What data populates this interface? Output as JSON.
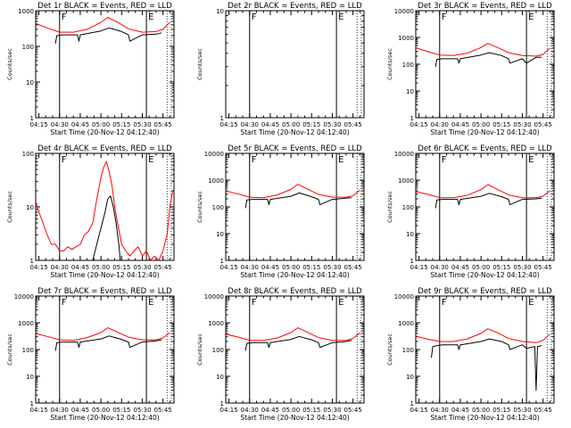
{
  "figure": {
    "xlabel": "Start Time (20-Nov-12 04:12:40)",
    "ylabel": "Counts/sec",
    "x_ticks": [
      "04:15",
      "04:30",
      "04:45",
      "05:00",
      "05:15",
      "05:30",
      "05:45"
    ],
    "colors": {
      "events": "#000000",
      "lld": "#ff0000",
      "axes": "#000000",
      "background": "#ffffff"
    }
  },
  "chart_data": [
    {
      "type": "line",
      "title": "Det 1r BLACK = Events, RED = LLD",
      "ylabel": "Counts/sec",
      "xlabel": "Start Time (20-Nov-12 04:12:40)",
      "xlim": [
        "04:12:40",
        "05:53:00"
      ],
      "ylim": [
        1,
        1000
      ],
      "y_scale": "log",
      "y_tick_labels": [
        "1",
        "10",
        "100",
        "1000"
      ],
      "markers": {
        "solid": [
          "04:30",
          "05:33"
        ],
        "dotted": [
          "05:48",
          "05:51"
        ],
        "labels": [
          {
            "text": "F",
            "at": "04:30"
          },
          {
            "text": "E",
            "at": "05:33"
          }
        ]
      },
      "series": [
        {
          "name": "LLD",
          "color": "#ff0000",
          "x": [
            "04:12",
            "04:22",
            "04:30",
            "04:40",
            "04:50",
            "05:00",
            "05:05",
            "05:12",
            "05:20",
            "05:30",
            "05:40",
            "05:45",
            "05:50"
          ],
          "y": [
            450,
            320,
            250,
            250,
            300,
            470,
            650,
            480,
            310,
            250,
            260,
            300,
            480
          ]
        },
        {
          "name": "Events",
          "color": "#000000",
          "x": [
            "04:27",
            "04:28",
            "04:32",
            "04:43",
            "04:44",
            "04:45",
            "05:00",
            "05:06",
            "05:15",
            "05:20",
            "05:21",
            "05:30",
            "05:40",
            "05:44"
          ],
          "y": [
            120,
            200,
            210,
            210,
            140,
            210,
            270,
            330,
            260,
            210,
            140,
            210,
            220,
            240
          ]
        }
      ]
    },
    {
      "type": "line",
      "title": "Det 2r BLACK = Events, RED = LLD",
      "ylabel": "Counts/sec",
      "xlabel": "Start Time (20-Nov-12 04:12:40)",
      "xlim": [
        "04:12:40",
        "05:53:00"
      ],
      "ylim": [
        1,
        10
      ],
      "y_scale": "log",
      "y_tick_labels": [
        "1",
        "10"
      ],
      "markers": {
        "solid": [
          "04:30",
          "05:33"
        ],
        "dotted": [
          "05:48",
          "05:51"
        ],
        "labels": [
          {
            "text": "F",
            "at": "04:30"
          },
          {
            "text": "E",
            "at": "05:33"
          }
        ]
      },
      "series": []
    },
    {
      "type": "line",
      "title": "Det 3r BLACK = Events, RED = LLD",
      "ylabel": "Counts/sec",
      "xlabel": "Start Time (20-Nov-12 04:12:40)",
      "xlim": [
        "04:12:40",
        "05:53:00"
      ],
      "ylim": [
        1,
        10000
      ],
      "y_scale": "log",
      "y_tick_labels": [
        "1",
        "10",
        "100",
        "1000",
        "10000"
      ],
      "markers": {
        "solid": [
          "04:30",
          "05:33"
        ],
        "dotted": [
          "05:48",
          "05:51"
        ],
        "labels": [
          {
            "text": "F",
            "at": "04:30"
          },
          {
            "text": "E",
            "at": "05:33"
          }
        ]
      },
      "series": [
        {
          "name": "LLD",
          "color": "#ff0000",
          "x": [
            "04:12",
            "04:22",
            "04:30",
            "04:40",
            "04:50",
            "05:00",
            "05:05",
            "05:12",
            "05:20",
            "05:30",
            "05:40",
            "05:45",
            "05:50"
          ],
          "y": [
            420,
            290,
            220,
            210,
            260,
            420,
            600,
            420,
            270,
            210,
            200,
            230,
            400
          ]
        },
        {
          "name": "Events",
          "color": "#000000",
          "x": [
            "04:27",
            "04:28",
            "04:32",
            "04:43",
            "04:44",
            "04:45",
            "05:00",
            "05:06",
            "05:15",
            "05:20",
            "05:21",
            "05:30",
            "05:33",
            "05:40",
            "05:44"
          ],
          "y": [
            80,
            150,
            160,
            160,
            110,
            160,
            220,
            270,
            210,
            160,
            110,
            160,
            110,
            180,
            180
          ]
        }
      ]
    },
    {
      "type": "line",
      "title": "Det 4r BLACK = Events, RED = LLD",
      "ylabel": "Counts/sec",
      "xlabel": "Start Time (20-Nov-12 04:12:40)",
      "xlim": [
        "04:12:40",
        "05:53:00"
      ],
      "ylim": [
        1,
        100
      ],
      "y_scale": "log",
      "y_tick_labels": [
        "1",
        "10",
        "100"
      ],
      "markers": {
        "solid": [
          "04:30",
          "05:33"
        ],
        "dotted": [
          "05:48",
          "05:51"
        ],
        "labels": [
          {
            "text": "F",
            "at": "04:30"
          },
          {
            "text": "E",
            "at": "05:33"
          }
        ]
      },
      "series": [
        {
          "name": "LLD",
          "color": "#ff0000",
          "x": [
            "04:13",
            "04:15",
            "04:18",
            "04:21",
            "04:24",
            "04:27",
            "04:30",
            "04:33",
            "04:36",
            "04:39",
            "04:42",
            "04:45",
            "04:48",
            "04:51",
            "04:54",
            "04:57",
            "05:00",
            "05:02",
            "05:04",
            "05:06",
            "05:08",
            "05:10",
            "05:12",
            "05:15",
            "05:18",
            "05:21",
            "05:24",
            "05:27",
            "05:30",
            "05:33",
            "05:36",
            "05:39",
            "05:42",
            "05:45",
            "05:48",
            "05:50",
            "05:52"
          ],
          "y": [
            12,
            8,
            5,
            3,
            2,
            2,
            1.5,
            1.5,
            1.8,
            1.6,
            1.8,
            2,
            3,
            3.5,
            5,
            14,
            35,
            55,
            70,
            45,
            25,
            10,
            5,
            2,
            1.5,
            1.2,
            1.5,
            1.8,
            1.2,
            1.5,
            1,
            1.2,
            1,
            1.5,
            3,
            10,
            20
          ]
        },
        {
          "name": "Events",
          "color": "#000000",
          "x": [
            "04:54",
            "04:57",
            "05:00",
            "05:03",
            "05:05",
            "05:07",
            "05:09",
            "05:11",
            "05:13",
            "05:14"
          ],
          "y": [
            1,
            2,
            4,
            8,
            14,
            16,
            10,
            5,
            2,
            1
          ]
        }
      ]
    },
    {
      "type": "line",
      "title": "Det 5r BLACK = Events, RED = LLD",
      "ylabel": "Counts/sec",
      "xlabel": "Start Time (20-Nov-12 04:12:40)",
      "xlim": [
        "04:12:40",
        "05:53:00"
      ],
      "ylim": [
        1,
        10000
      ],
      "y_scale": "log",
      "y_tick_labels": [
        "1",
        "10",
        "100",
        "1000",
        "10000"
      ],
      "markers": {
        "solid": [
          "04:30",
          "05:33"
        ],
        "dotted": [
          "05:48",
          "05:51"
        ],
        "labels": [
          {
            "text": "F",
            "at": "04:30"
          },
          {
            "text": "E",
            "at": "05:33"
          }
        ]
      },
      "series": [
        {
          "name": "LLD",
          "color": "#ff0000",
          "x": [
            "04:12",
            "04:22",
            "04:30",
            "04:40",
            "04:50",
            "05:00",
            "05:05",
            "05:12",
            "05:20",
            "05:30",
            "05:40",
            "05:45",
            "05:50"
          ],
          "y": [
            400,
            300,
            230,
            220,
            280,
            450,
            700,
            460,
            290,
            230,
            230,
            260,
            420
          ]
        },
        {
          "name": "Events",
          "color": "#000000",
          "x": [
            "04:27",
            "04:28",
            "04:32",
            "04:43",
            "04:44",
            "04:45",
            "05:00",
            "05:06",
            "05:15",
            "05:20",
            "05:21",
            "05:30",
            "05:40",
            "05:44"
          ],
          "y": [
            90,
            180,
            190,
            190,
            120,
            190,
            250,
            330,
            240,
            190,
            120,
            190,
            210,
            220
          ]
        }
      ]
    },
    {
      "type": "line",
      "title": "Det 6r BLACK = Events, RED = LLD",
      "ylabel": "Counts/sec",
      "xlabel": "Start Time (20-Nov-12 04:12:40)",
      "xlim": [
        "04:12:40",
        "05:53:00"
      ],
      "ylim": [
        1,
        10000
      ],
      "y_scale": "log",
      "y_tick_labels": [
        "1",
        "10",
        "100",
        "1000",
        "10000"
      ],
      "markers": {
        "solid": [
          "04:30",
          "05:33"
        ],
        "dotted": [
          "05:48",
          "05:51"
        ],
        "labels": [
          {
            "text": "F",
            "at": "04:30"
          },
          {
            "text": "E",
            "at": "05:33"
          }
        ]
      },
      "series": [
        {
          "name": "LLD",
          "color": "#ff0000",
          "x": [
            "04:12",
            "04:22",
            "04:30",
            "04:40",
            "04:50",
            "05:00",
            "05:05",
            "05:12",
            "05:20",
            "05:30",
            "05:40",
            "05:45",
            "05:50"
          ],
          "y": [
            380,
            290,
            220,
            220,
            270,
            440,
            680,
            450,
            280,
            220,
            220,
            250,
            400
          ]
        },
        {
          "name": "Events",
          "color": "#000000",
          "x": [
            "04:27",
            "04:28",
            "04:32",
            "04:43",
            "04:44",
            "04:45",
            "05:00",
            "05:06",
            "05:15",
            "05:20",
            "05:21",
            "05:30",
            "05:40",
            "05:44"
          ],
          "y": [
            90,
            180,
            190,
            190,
            120,
            190,
            250,
            320,
            240,
            190,
            120,
            190,
            200,
            210
          ]
        }
      ]
    },
    {
      "type": "line",
      "title": "Det 7r BLACK = Events, RED = LLD",
      "ylabel": "Counts/sec",
      "xlabel": "Start Time (20-Nov-12 04:12:40)",
      "xlim": [
        "04:12:40",
        "05:53:00"
      ],
      "ylim": [
        1,
        10000
      ],
      "y_scale": "log",
      "y_tick_labels": [
        "1",
        "10",
        "100",
        "1000",
        "10000"
      ],
      "markers": {
        "solid": [
          "04:30",
          "05:33"
        ],
        "dotted": [
          "05:48",
          "05:51"
        ],
        "labels": [
          {
            "text": "F",
            "at": "04:30"
          },
          {
            "text": "E",
            "at": "05:33"
          }
        ]
      },
      "series": [
        {
          "name": "LLD",
          "color": "#ff0000",
          "x": [
            "04:12",
            "04:22",
            "04:30",
            "04:40",
            "04:50",
            "05:00",
            "05:05",
            "05:12",
            "05:20",
            "05:30",
            "05:40",
            "05:45",
            "05:50"
          ],
          "y": [
            400,
            300,
            230,
            220,
            280,
            430,
            650,
            450,
            290,
            230,
            230,
            270,
            430
          ]
        },
        {
          "name": "Events",
          "color": "#000000",
          "x": [
            "04:27",
            "04:28",
            "04:32",
            "04:43",
            "04:44",
            "04:45",
            "05:00",
            "05:06",
            "05:15",
            "05:20",
            "05:21",
            "05:30",
            "05:40",
            "05:44"
          ],
          "y": [
            90,
            180,
            190,
            190,
            120,
            190,
            250,
            320,
            240,
            190,
            120,
            190,
            210,
            230
          ]
        }
      ]
    },
    {
      "type": "line",
      "title": "Det 8r BLACK = Events, RED = LLD",
      "ylabel": "Counts/sec",
      "xlabel": "Start Time (20-Nov-12 04:12:40)",
      "xlim": [
        "04:12:40",
        "05:53:00"
      ],
      "ylim": [
        1,
        10000
      ],
      "y_scale": "log",
      "y_tick_labels": [
        "1",
        "10",
        "100",
        "1000",
        "10000"
      ],
      "markers": {
        "solid": [
          "04:30",
          "05:33"
        ],
        "dotted": [
          "05:48",
          "05:51"
        ],
        "labels": [
          {
            "text": "F",
            "at": "04:30"
          },
          {
            "text": "E",
            "at": "05:33"
          }
        ]
      },
      "series": [
        {
          "name": "LLD",
          "color": "#ff0000",
          "x": [
            "04:12",
            "04:22",
            "04:30",
            "04:40",
            "04:50",
            "05:00",
            "05:05",
            "05:12",
            "05:20",
            "05:30",
            "05:40",
            "05:45",
            "05:50"
          ],
          "y": [
            380,
            290,
            220,
            220,
            270,
            430,
            650,
            440,
            280,
            220,
            220,
            260,
            420
          ]
        },
        {
          "name": "Events",
          "color": "#000000",
          "x": [
            "04:27",
            "04:28",
            "04:32",
            "04:43",
            "04:44",
            "04:45",
            "05:00",
            "05:06",
            "05:15",
            "05:20",
            "05:21",
            "05:30",
            "05:40",
            "05:44"
          ],
          "y": [
            90,
            170,
            180,
            180,
            120,
            180,
            240,
            310,
            230,
            180,
            120,
            180,
            200,
            220
          ]
        }
      ]
    },
    {
      "type": "line",
      "title": "Det 9r BLACK = Events, RED = LLD",
      "ylabel": "Counts/sec",
      "xlabel": "Start Time (20-Nov-12 04:12:40)",
      "xlim": [
        "04:12:40",
        "05:53:00"
      ],
      "ylim": [
        1,
        10000
      ],
      "y_scale": "log",
      "y_tick_labels": [
        "1",
        "10",
        "100",
        "1000",
        "10000"
      ],
      "markers": {
        "solid": [
          "04:30",
          "05:33"
        ],
        "dotted": [
          "05:48",
          "05:51"
        ],
        "labels": [
          {
            "text": "F",
            "at": "04:30"
          },
          {
            "text": "E",
            "at": "05:33"
          }
        ]
      },
      "series": [
        {
          "name": "LLD",
          "color": "#ff0000",
          "x": [
            "04:12",
            "04:22",
            "04:30",
            "04:40",
            "04:50",
            "05:00",
            "05:05",
            "05:12",
            "05:20",
            "05:30",
            "05:40",
            "05:45",
            "05:50"
          ],
          "y": [
            320,
            240,
            200,
            200,
            250,
            400,
            600,
            420,
            260,
            200,
            180,
            220,
            380
          ]
        },
        {
          "name": "Events",
          "color": "#000000",
          "x": [
            "04:24",
            "04:25",
            "04:28",
            "04:32",
            "04:43",
            "04:44",
            "04:45",
            "05:00",
            "05:06",
            "05:15",
            "05:20",
            "05:21",
            "05:30",
            "05:33",
            "05:36",
            "05:39",
            "05:40",
            "05:41",
            "05:44"
          ],
          "y": [
            50,
            130,
            140,
            150,
            150,
            100,
            150,
            200,
            250,
            200,
            150,
            100,
            150,
            110,
            120,
            130,
            3,
            130,
            140
          ]
        }
      ]
    }
  ]
}
